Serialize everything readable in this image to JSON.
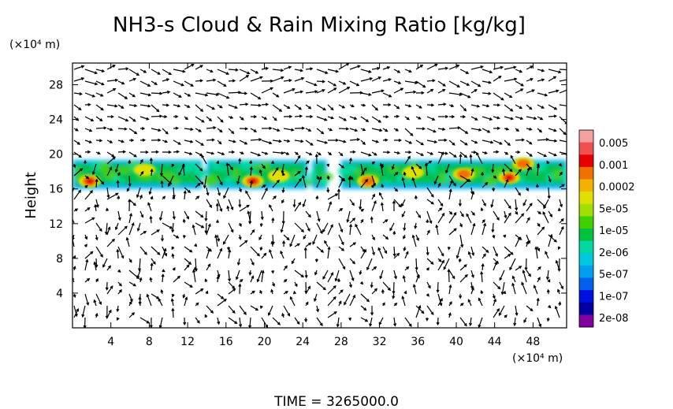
{
  "chart_data": {
    "type": "heatmap",
    "title": "NH3-s Cloud & Rain Mixing Ratio [kg/kg]",
    "ylabel": "Height",
    "y_unit": "(×10⁴ m)",
    "x_unit": "(×10⁴ m)",
    "xlim": [
      0,
      51.5
    ],
    "ylim": [
      0,
      30.5
    ],
    "x_ticks": [
      4,
      8,
      12,
      16,
      20,
      24,
      28,
      32,
      36,
      40,
      44,
      48
    ],
    "y_ticks": [
      4,
      8,
      12,
      16,
      20,
      24,
      28
    ],
    "grid": false,
    "time_label": "TIME = 3265000.0",
    "colorbar": {
      "labels": [
        "0.005",
        "0.001",
        "0.0002",
        "5e-05",
        "1e-05",
        "2e-06",
        "5e-07",
        "1e-07",
        "2e-08"
      ],
      "colors": [
        "#f4a0a0",
        "#f05050",
        "#e80000",
        "#f07000",
        "#f5b000",
        "#e0e000",
        "#a0e000",
        "#40d000",
        "#00c040",
        "#00d8a0",
        "#00c8e0",
        "#00a0f0",
        "#0060f0",
        "#0010e0",
        "#0000a0",
        "#8000a0"
      ]
    },
    "cloud_layer": {
      "y_range": [
        16,
        19.5
      ],
      "segments": [
        [
          0,
          13.5
        ],
        [
          14,
          24.5
        ],
        [
          25,
          26.5
        ],
        [
          28,
          51.5
        ]
      ],
      "cores": [
        {
          "x": 1.8,
          "y": 16.9,
          "level": 3
        },
        {
          "x": 7.5,
          "y": 18.2,
          "level": 1
        },
        {
          "x": 18.8,
          "y": 16.9,
          "level": 3
        },
        {
          "x": 21.5,
          "y": 17.5,
          "level": 1
        },
        {
          "x": 30.8,
          "y": 16.9,
          "level": 2
        },
        {
          "x": 35.5,
          "y": 17.9,
          "level": 1
        },
        {
          "x": 40.8,
          "y": 17.7,
          "level": 2
        },
        {
          "x": 45.5,
          "y": 17.3,
          "level": 3
        },
        {
          "x": 47.0,
          "y": 18.9,
          "level": 2
        }
      ]
    }
  }
}
